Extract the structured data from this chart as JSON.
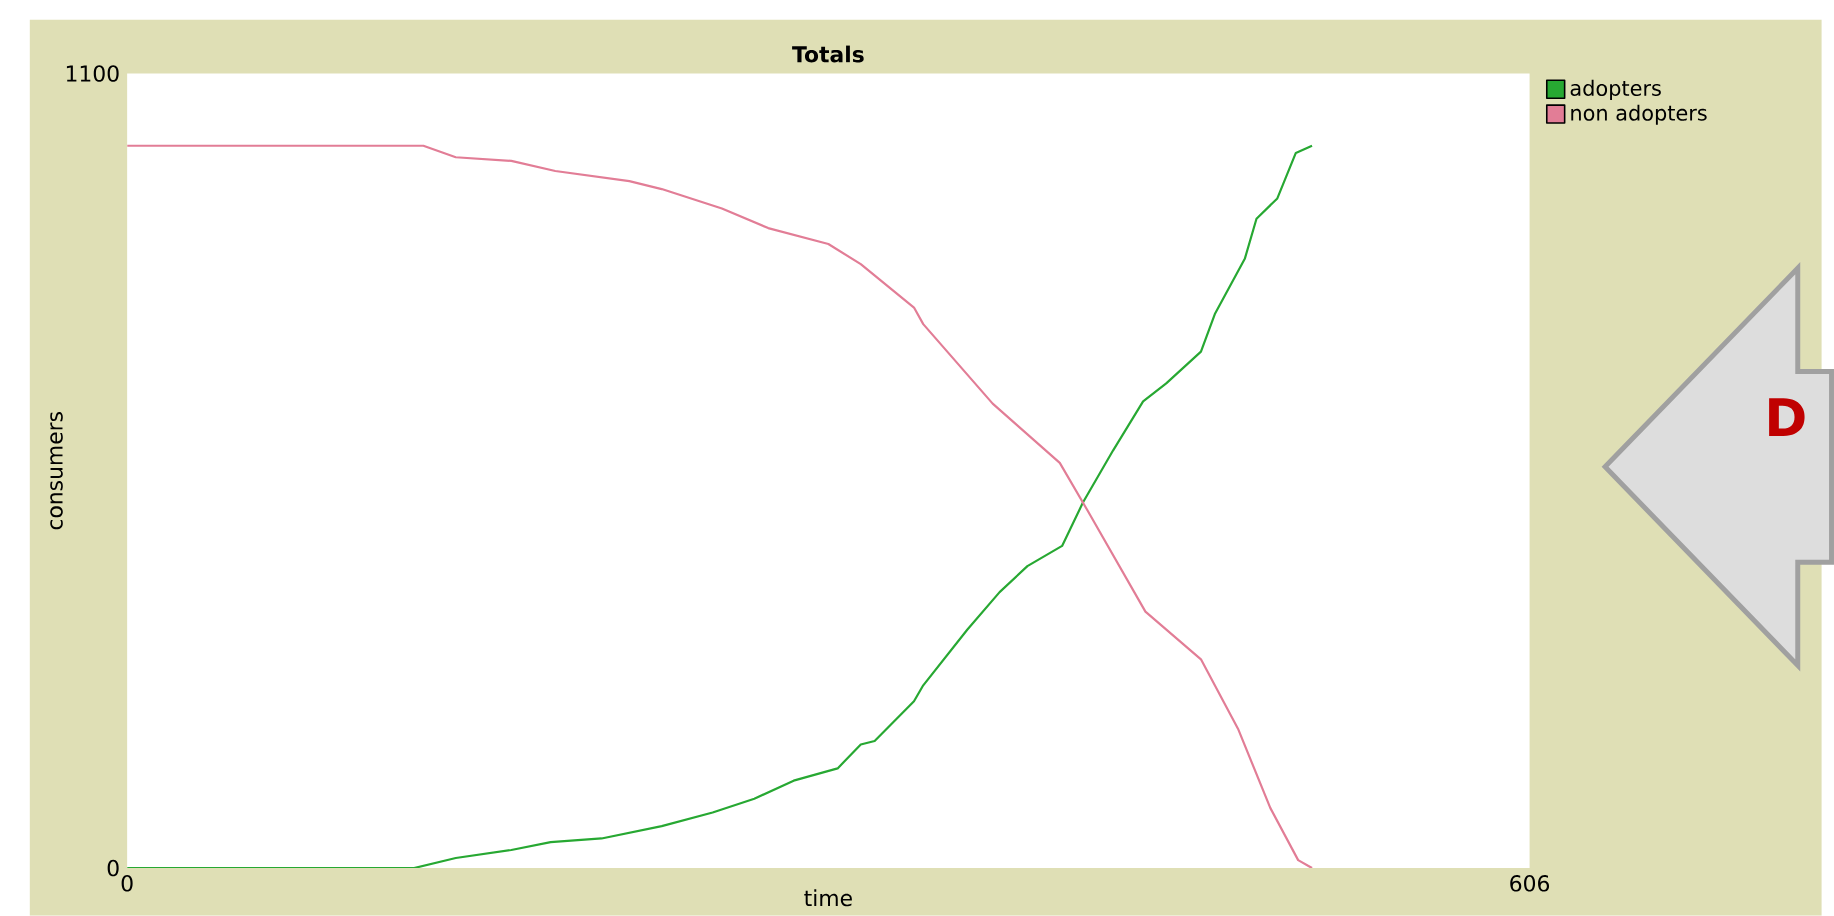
{
  "chart_data": {
    "type": "line",
    "title": "Totals",
    "xlabel": "time",
    "ylabel": "consumers",
    "xlim": [
      0,
      606
    ],
    "ylim": [
      0,
      1100
    ],
    "xticks": [
      0,
      606
    ],
    "yticks": [
      0,
      1100
    ],
    "grid": false,
    "legend": "top right",
    "series": [
      {
        "name": "adopters",
        "color": "#27a832",
        "x": [
          0,
          124,
          142,
          166,
          183,
          205,
          231,
          253,
          271,
          288,
          307,
          317,
          323,
          340,
          344,
          363,
          377,
          389,
          404,
          413,
          426,
          439,
          449,
          464,
          470,
          483,
          488,
          497,
          505,
          512
        ],
        "values": [
          0,
          0,
          14,
          25,
          36,
          41,
          58,
          77,
          96,
          121,
          138,
          171,
          176,
          231,
          253,
          330,
          382,
          418,
          446,
          506,
          578,
          646,
          671,
          715,
          767,
          844,
          899,
          927,
          990,
          1000
        ]
      },
      {
        "name": "non adopters",
        "color": "#e27d96",
        "x": [
          0,
          128,
          142,
          166,
          185,
          217,
          231,
          257,
          277,
          303,
          317,
          340,
          344,
          374,
          403,
          415,
          440,
          464,
          480,
          494,
          506,
          512
        ],
        "values": [
          1000,
          1000,
          984,
          979,
          965,
          951,
          940,
          913,
          886,
          864,
          836,
          776,
          753,
          643,
          561,
          495,
          355,
          289,
          193,
          83,
          11,
          0
        ]
      }
    ],
    "annotations": [
      "D"
    ]
  }
}
